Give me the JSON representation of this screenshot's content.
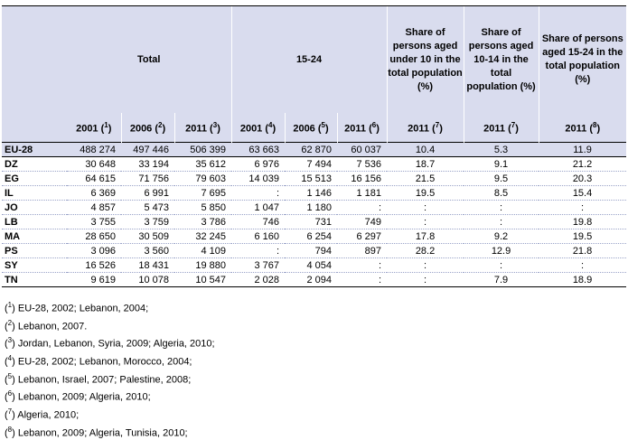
{
  "header": {
    "group_total": "Total",
    "group_1524": "15-24",
    "share_under10": "Share of persons aged under 10 in the total population (%)",
    "share_1014": "Share of persons aged 10-14 in the total population (%)",
    "share_1524": "Share of persons aged 15-24 in the total population (%)",
    "years": [
      {
        "year": "2001",
        "note": "1"
      },
      {
        "year": "2006",
        "note": "2"
      },
      {
        "year": "2011",
        "note": "3"
      },
      {
        "year": "2001",
        "note": "4"
      },
      {
        "year": "2006",
        "note": "5"
      },
      {
        "year": "2011",
        "note": "6"
      },
      {
        "year": "2011",
        "note": "7"
      },
      {
        "year": "2011",
        "note": "7"
      },
      {
        "year": "2011",
        "note": "8"
      }
    ]
  },
  "rows": [
    {
      "code": "EU-28",
      "v": [
        "488 274",
        "497 446",
        "506 399",
        "63 663",
        "62 870",
        "60 037",
        "10.4",
        "5.3",
        "11.9"
      ]
    },
    {
      "code": "DZ",
      "v": [
        "30 648",
        "33 194",
        "35 612",
        "6 976",
        "7 494",
        "7 536",
        "18.7",
        "9.1",
        "21.2"
      ]
    },
    {
      "code": "EG",
      "v": [
        "64 615",
        "71 756",
        "79 603",
        "14 039",
        "15 513",
        "16 156",
        "21.5",
        "9.5",
        "20.3"
      ]
    },
    {
      "code": "IL",
      "v": [
        "6 369",
        "6 991",
        "7 695",
        ":",
        "1 146",
        "1 181",
        "19.5",
        "8.5",
        "15.4"
      ]
    },
    {
      "code": "JO",
      "v": [
        "4 857",
        "5 473",
        "5 850",
        "1 047",
        "1 180",
        ":",
        ":",
        ":",
        ":"
      ]
    },
    {
      "code": "LB",
      "v": [
        "3 755",
        "3 759",
        "3 786",
        "746",
        "731",
        "749",
        ":",
        ":",
        "19.8"
      ]
    },
    {
      "code": "MA",
      "v": [
        "28 650",
        "30 509",
        "32 245",
        "6 160",
        "6 254",
        "6 297",
        "17.8",
        "9.2",
        "19.5"
      ]
    },
    {
      "code": "PS",
      "v": [
        "3 096",
        "3 560",
        "4 109",
        ":",
        "794",
        "897",
        "28.2",
        "12.9",
        "21.8"
      ]
    },
    {
      "code": "SY",
      "v": [
        "16 526",
        "18 431",
        "19 880",
        "3 767",
        "4 054",
        ":",
        ":",
        ":",
        ":"
      ]
    },
    {
      "code": "TN",
      "v": [
        "9 619",
        "10 078",
        "10 547",
        "2 028",
        "2 094",
        ":",
        ":",
        "7.9",
        "18.9"
      ]
    }
  ],
  "notes": [
    {
      "n": "1",
      "text": "EU-28, 2002; Lebanon, 2004;"
    },
    {
      "n": "2",
      "text": "Lebanon, 2007."
    },
    {
      "n": "3",
      "text": "Jordan, Lebanon, Syria, 2009; Algeria, 2010;"
    },
    {
      "n": "4",
      "text": "EU-28, 2002; Lebanon, Morocco, 2004;"
    },
    {
      "n": "5",
      "text": "Lebanon, Israel, 2007; Palestine, 2008;"
    },
    {
      "n": "6",
      "text": "Lebanon, 2009; Algeria, 2010;"
    },
    {
      "n": "7",
      "text": "Algeria, 2010;"
    },
    {
      "n": "8",
      "text": "Lebanon, 2009; Algeria, Tunisia, 2010;"
    }
  ]
}
